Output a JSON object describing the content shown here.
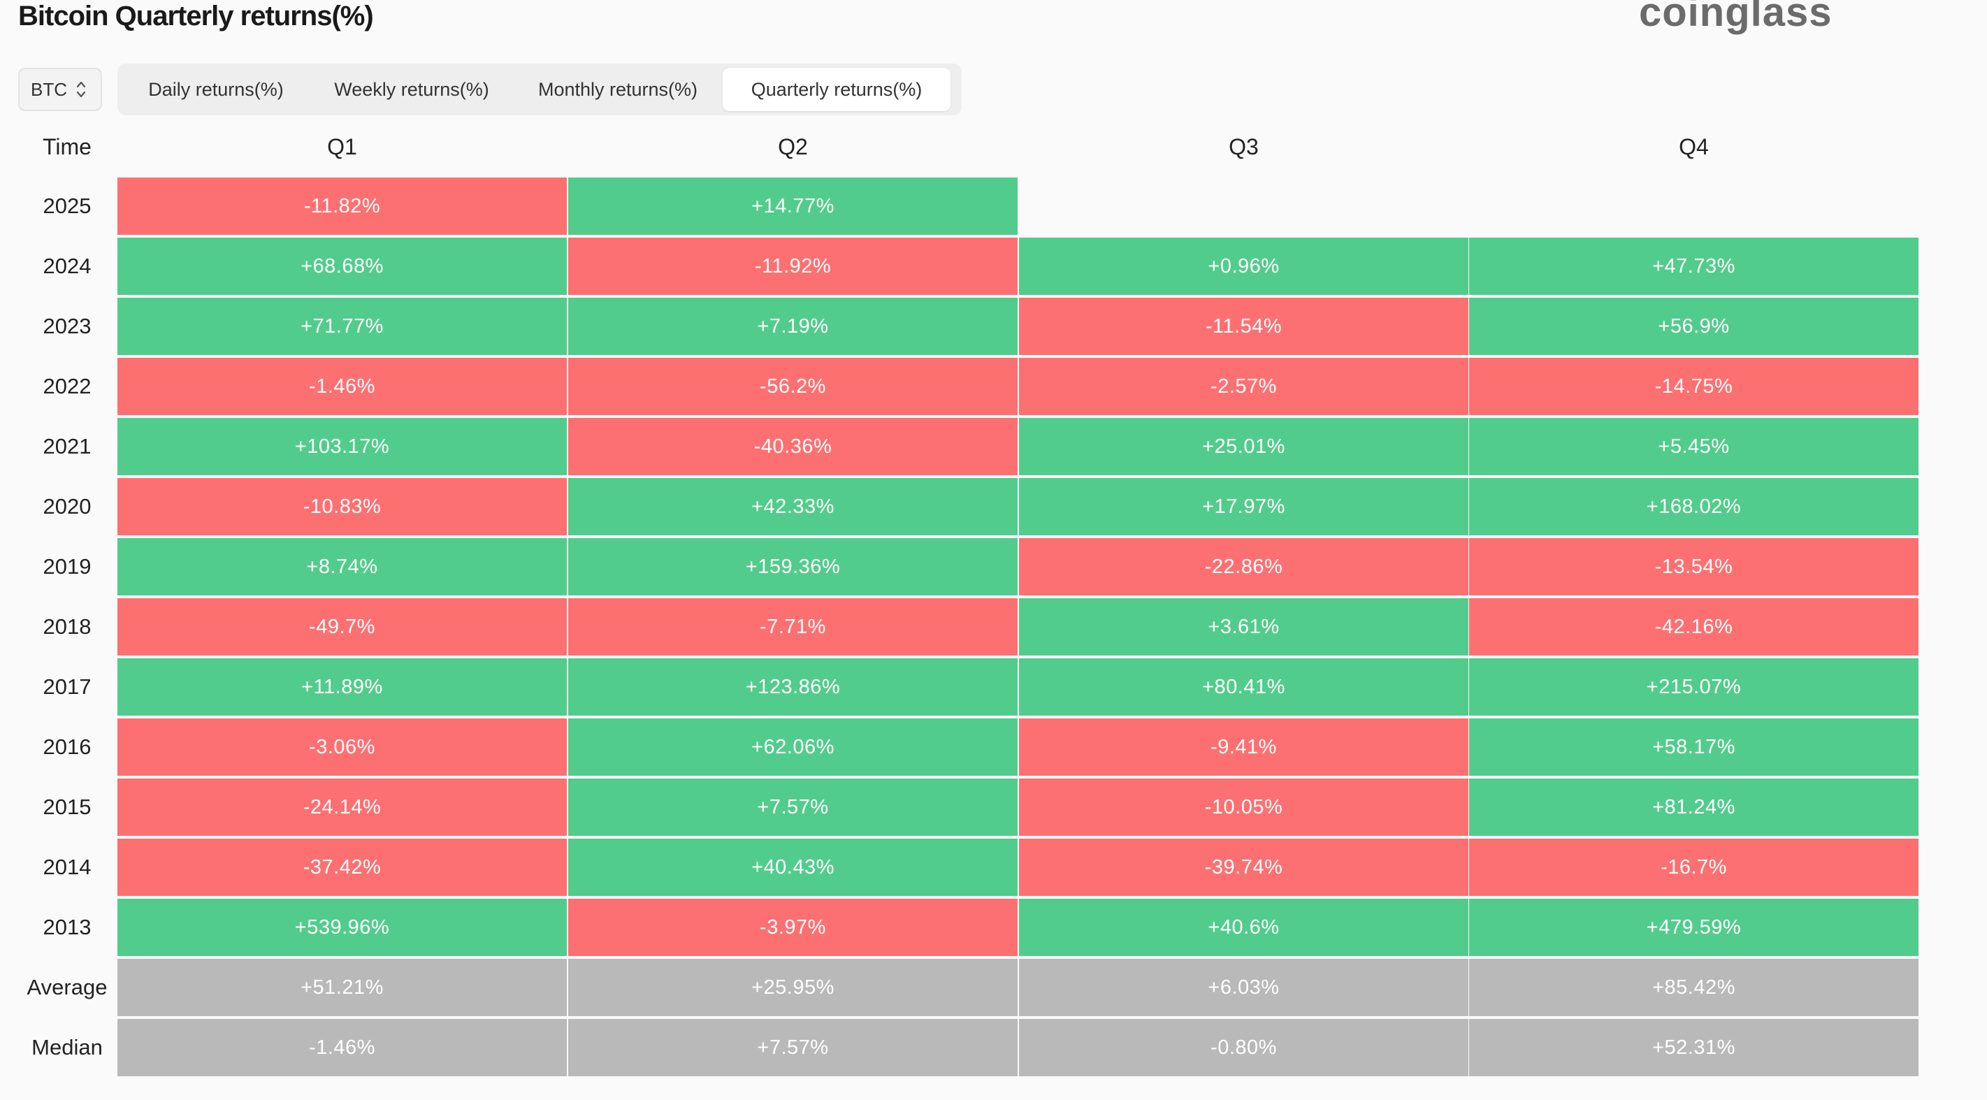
{
  "title": "Bitcoin Quarterly returns(%)",
  "brand": "coinglass",
  "coin_select": {
    "value": "BTC",
    "icon": "up-down-chevron-icon"
  },
  "tabs": [
    {
      "label": "Daily returns(%)",
      "active": false
    },
    {
      "label": "Weekly returns(%)",
      "active": false
    },
    {
      "label": "Monthly returns(%)",
      "active": false
    },
    {
      "label": "Quarterly returns(%)",
      "active": true
    }
  ],
  "colors": {
    "positive": "#52cc8c",
    "negative": "#fd7071",
    "summary": "#b9b9b9"
  },
  "table": {
    "time_header": "Time",
    "columns": [
      "Q1",
      "Q2",
      "Q3",
      "Q4"
    ],
    "rows": [
      {
        "year": "2025",
        "values": [
          "-11.82%",
          "+14.77%",
          null,
          null
        ]
      },
      {
        "year": "2024",
        "values": [
          "+68.68%",
          "-11.92%",
          "+0.96%",
          "+47.73%"
        ]
      },
      {
        "year": "2023",
        "values": [
          "+71.77%",
          "+7.19%",
          "-11.54%",
          "+56.9%"
        ]
      },
      {
        "year": "2022",
        "values": [
          "-1.46%",
          "-56.2%",
          "-2.57%",
          "-14.75%"
        ]
      },
      {
        "year": "2021",
        "values": [
          "+103.17%",
          "-40.36%",
          "+25.01%",
          "+5.45%"
        ]
      },
      {
        "year": "2020",
        "values": [
          "-10.83%",
          "+42.33%",
          "+17.97%",
          "+168.02%"
        ]
      },
      {
        "year": "2019",
        "values": [
          "+8.74%",
          "+159.36%",
          "-22.86%",
          "-13.54%"
        ]
      },
      {
        "year": "2018",
        "values": [
          "-49.7%",
          "-7.71%",
          "+3.61%",
          "-42.16%"
        ]
      },
      {
        "year": "2017",
        "values": [
          "+11.89%",
          "+123.86%",
          "+80.41%",
          "+215.07%"
        ]
      },
      {
        "year": "2016",
        "values": [
          "-3.06%",
          "+62.06%",
          "-9.41%",
          "+58.17%"
        ]
      },
      {
        "year": "2015",
        "values": [
          "-24.14%",
          "+7.57%",
          "-10.05%",
          "+81.24%"
        ]
      },
      {
        "year": "2014",
        "values": [
          "-37.42%",
          "+40.43%",
          "-39.74%",
          "-16.7%"
        ]
      },
      {
        "year": "2013",
        "values": [
          "+539.96%",
          "-3.97%",
          "+40.6%",
          "+479.59%"
        ]
      }
    ],
    "summary": [
      {
        "label": "Average",
        "values": [
          "+51.21%",
          "+25.95%",
          "+6.03%",
          "+85.42%"
        ]
      },
      {
        "label": "Median",
        "values": [
          "-1.46%",
          "+7.57%",
          "-0.80%",
          "+52.31%"
        ]
      }
    ]
  }
}
